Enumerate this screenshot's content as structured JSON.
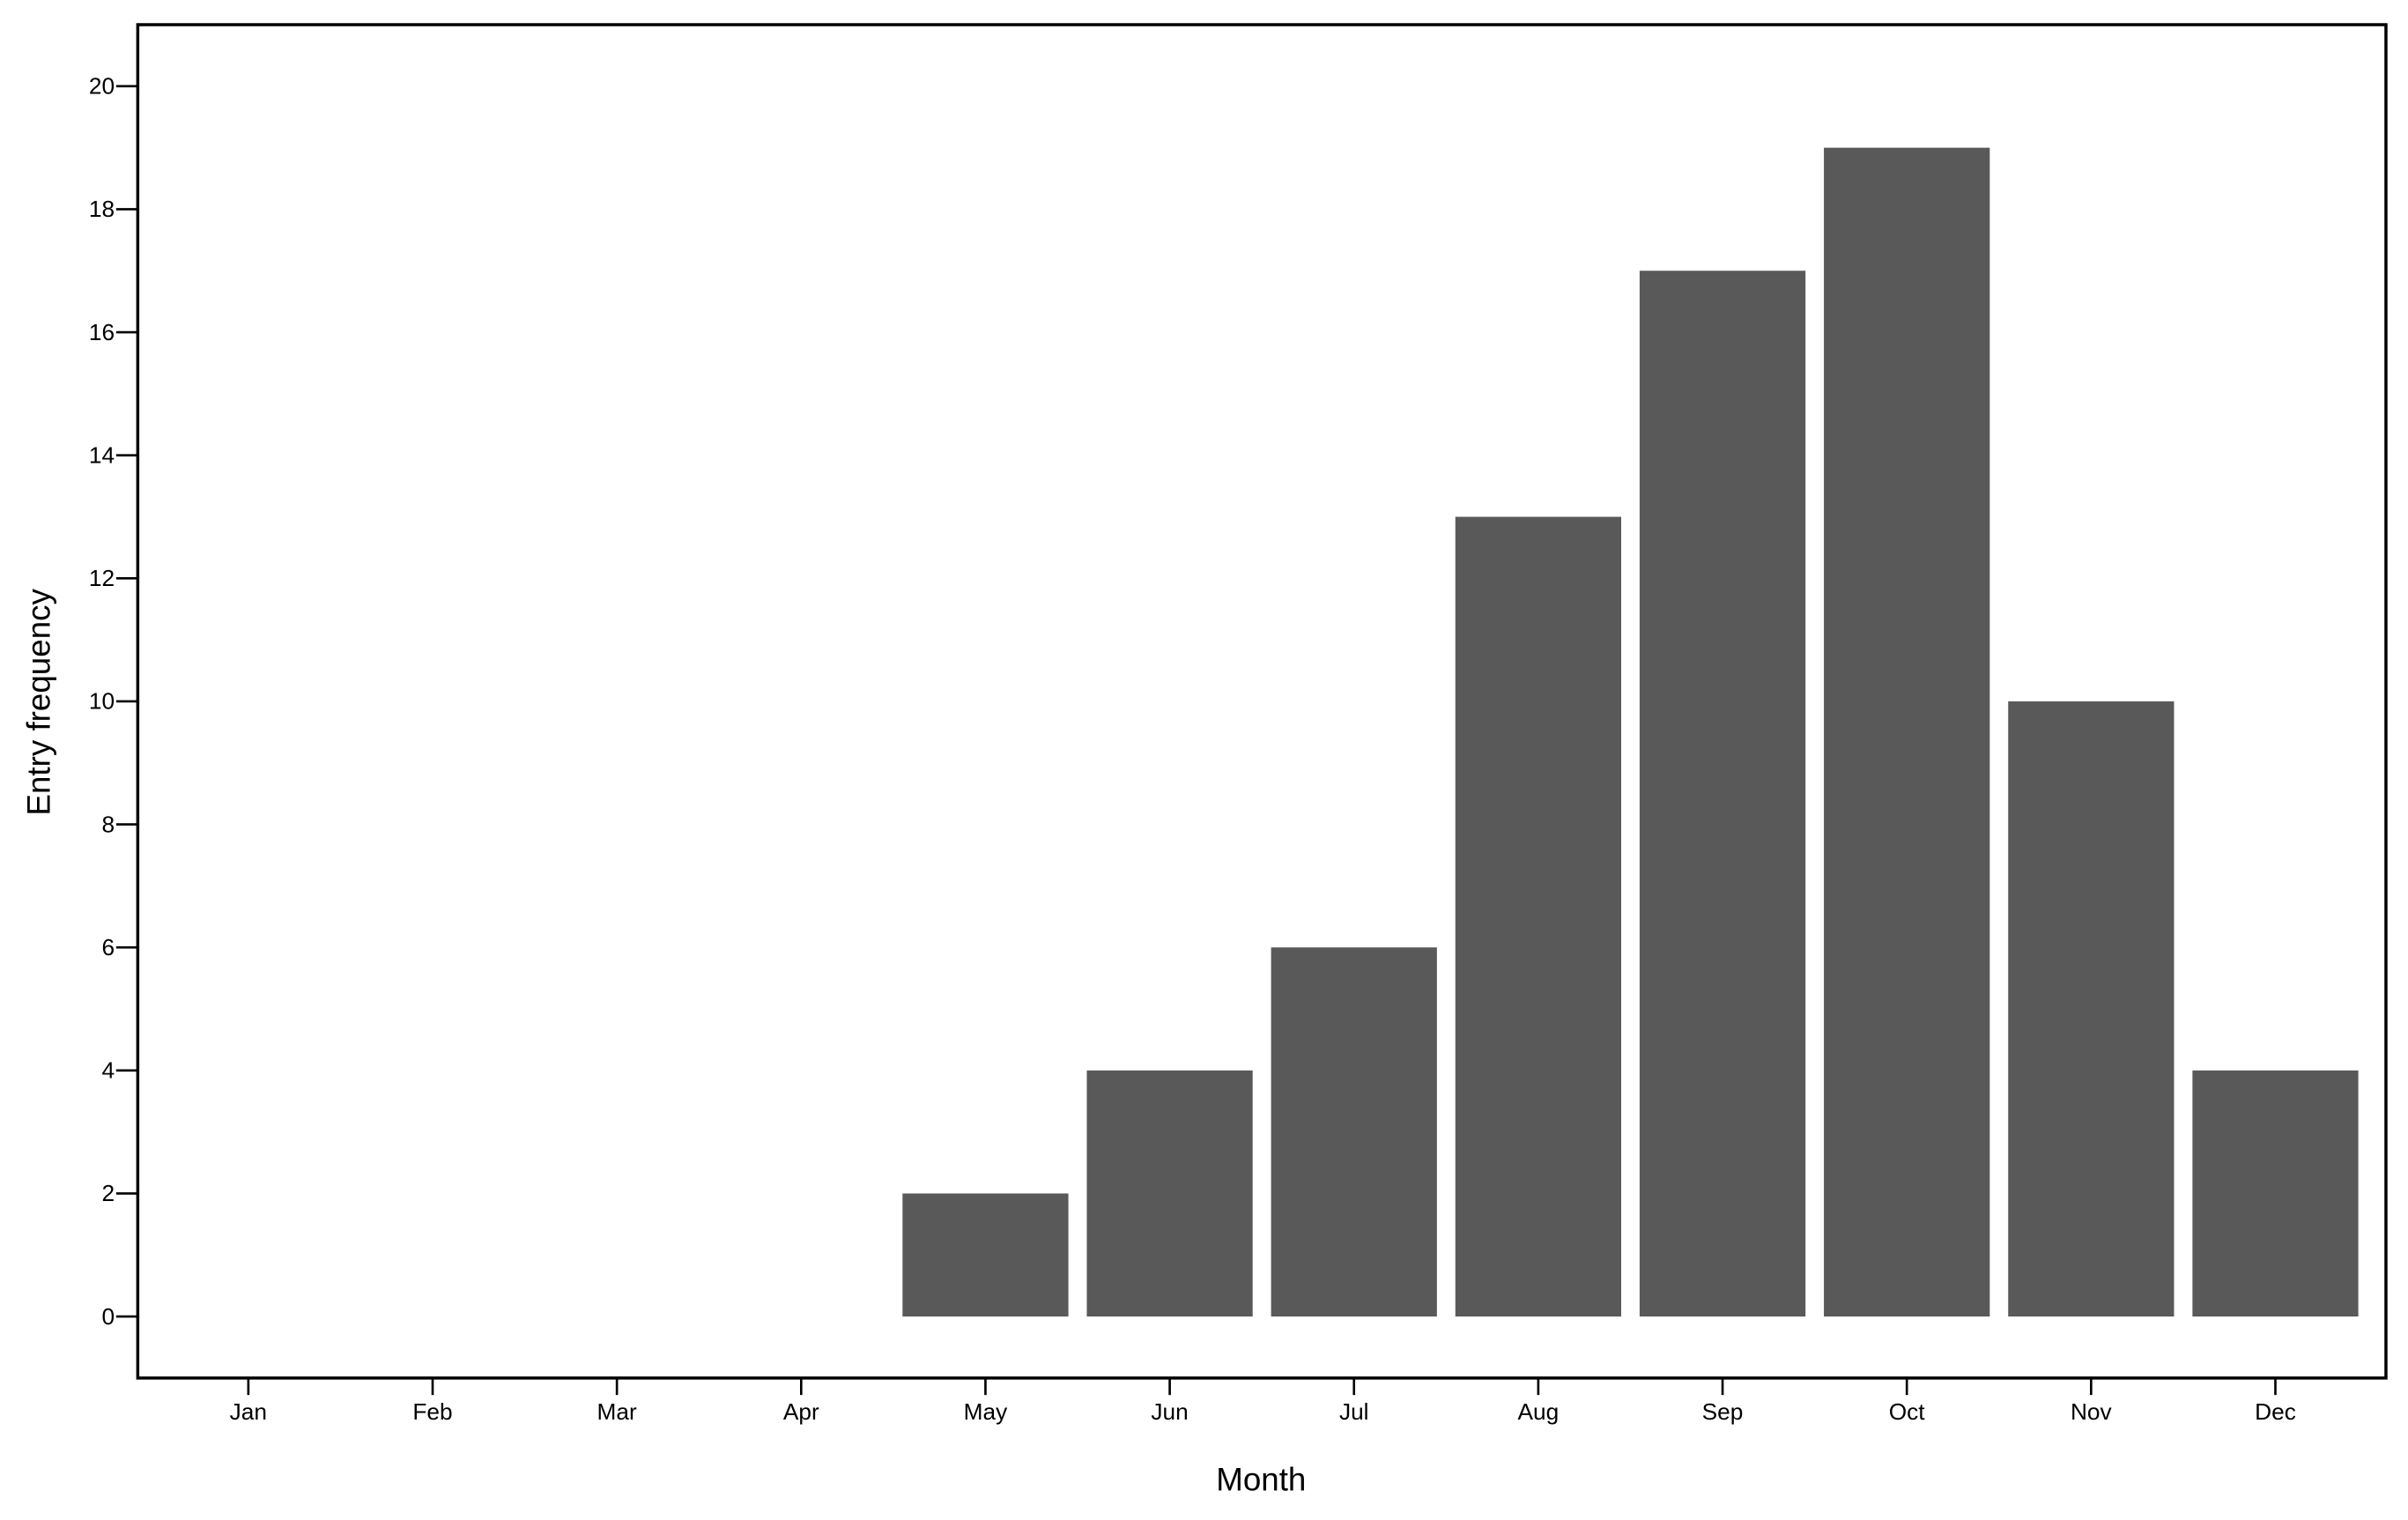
{
  "chart_data": {
    "type": "bar",
    "x_label": "Month",
    "y_label": "Entry frequency",
    "categories": [
      "Jan",
      "Feb",
      "Mar",
      "Apr",
      "May",
      "Jun",
      "Jul",
      "Aug",
      "Sep",
      "Oct",
      "Nov",
      "Dec"
    ],
    "values": [
      0,
      0,
      0,
      0,
      2,
      4,
      6,
      13,
      17,
      19,
      10,
      4
    ],
    "color": "#595959",
    "ylim": [
      -1,
      21
    ],
    "yticks": [
      0,
      2,
      4,
      6,
      8,
      10,
      12,
      14,
      16,
      18,
      20
    ],
    "grid": false
  }
}
